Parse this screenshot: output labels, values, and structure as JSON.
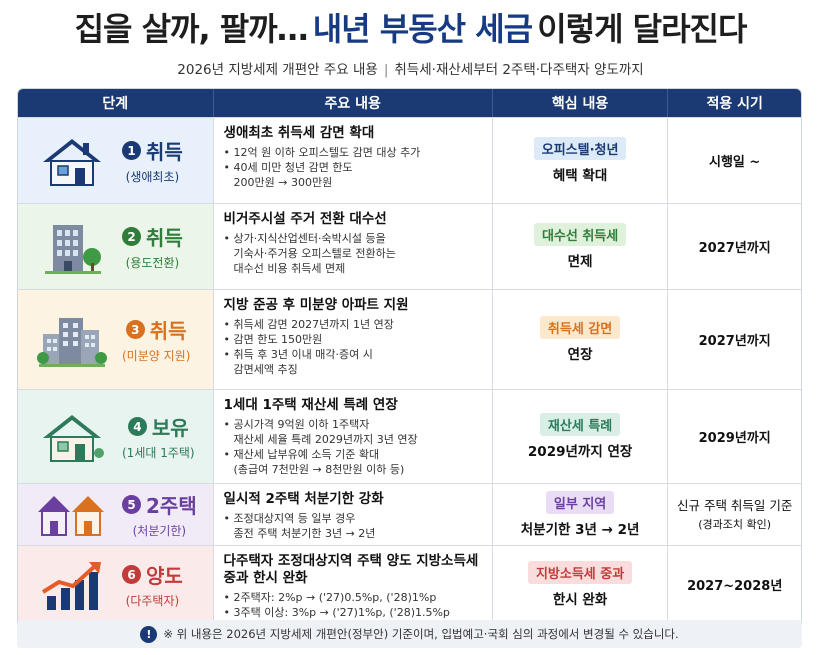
{
  "title": {
    "part1": "집을 살까, 팔까…",
    "part2": "내년 부동산 세금",
    "part3": "이렇게 달라진다"
  },
  "subtitle": {
    "left": "2026년 지방세제 개편안 주요 내용",
    "sep": "|",
    "right": "취득세·재산세부터 2주택·다주택자 양도까지"
  },
  "headers": {
    "stage": "단계",
    "content": "주요 내용",
    "core": "핵심 내용",
    "when": "적용 시기"
  },
  "rows": [
    {
      "num": "1",
      "name": "취득",
      "sub": "(생애최초)",
      "icon": "house-icon",
      "head": "생애최초 취득세 감면 확대",
      "bullets": [
        [
          "12억 원 이하 오피스텔도 감면 대상 추가"
        ],
        [
          "40세 미만 청년 감면 한도",
          "200만원 → 300만원"
        ]
      ],
      "badge": "오피스텔·청년",
      "desc": "혜택 확대",
      "when": "시행일 ~",
      "when_sub": "",
      "bg": "#e8f1fb",
      "accent": "#1b3a73",
      "badge_bg": "#dcebf7",
      "badge_fg": "#1b3a73"
    },
    {
      "num": "2",
      "name": "취득",
      "sub": "(용도전환)",
      "icon": "office-building-icon",
      "head": "비거주시설 주거 전환 대수선",
      "bullets": [
        [
          "상가·지식산업센터·숙박시설 등을",
          "기숙사·주거용 오피스텔로 전환하는",
          "대수선 비용 취득세 면제"
        ]
      ],
      "badge": "대수선 취득세",
      "desc": "면제",
      "when": "2027년까지",
      "when_sub": "",
      "bg": "#ebf5e9",
      "accent": "#2f7d3b",
      "badge_bg": "#dff0db",
      "badge_fg": "#2f7d3b"
    },
    {
      "num": "3",
      "name": "취득",
      "sub": "(미분양 지원)",
      "icon": "apartment-icon",
      "head": "지방 준공 후 미분양 아파트 지원",
      "bullets": [
        [
          "취득세 감면 2027년까지 1년 연장"
        ],
        [
          "감면 한도 150만원"
        ],
        [
          "취득 후 3년 이내 매각·증여 시",
          "감면세액 추징"
        ]
      ],
      "badge": "취득세 감면",
      "desc": "연장",
      "when": "2027년까지",
      "when_sub": "",
      "bg": "#fdf3e3",
      "accent": "#d9711f",
      "badge_bg": "#fce8cd",
      "badge_fg": "#d9711f"
    },
    {
      "num": "4",
      "name": "보유",
      "sub": "(1세대 1주택)",
      "icon": "green-house-icon",
      "head": "1세대 1주택 재산세 특례 연장",
      "bullets": [
        [
          "공시가격 9억원 이하 1주택자",
          "재산세 세율 특례 2029년까지 3년 연장"
        ],
        [
          "재산세 납부유예 소득 기준 확대",
          "(총급여 7천만원 → 8천만원 이하 등)"
        ]
      ],
      "badge": "재산세 특례",
      "desc": "2029년까지 연장",
      "when": "2029년까지",
      "when_sub": "",
      "bg": "#e8f4ef",
      "accent": "#2c7a5a",
      "badge_bg": "#d9efe5",
      "badge_fg": "#2c7a5a"
    },
    {
      "num": "5",
      "name": "2주택",
      "sub": "(처분기한)",
      "icon": "two-houses-icon",
      "head": "일시적 2주택 처분기한 강화",
      "bullets": [
        [
          "조정대상지역 등 일부 경우",
          "종전 주택 처분기한 3년 → 2년"
        ]
      ],
      "badge": "일부 지역",
      "desc": "처분기한 3년 → 2년",
      "when": "신규 주택 취득일 기준",
      "when_sub": "(경과조치 확인)",
      "bg": "#f1ebf7",
      "accent": "#6b3fa0",
      "badge_bg": "#e8ddf4",
      "badge_fg": "#6b3fa0"
    },
    {
      "num": "6",
      "name": "양도",
      "sub": "(다주택자)",
      "icon": "rising-chart-icon",
      "head": "다주택자 조정대상지역 주택 양도 지방소득세 중과 한시 완화",
      "bullets": [
        [
          "2주택자: 2%p → ('27)0.5%p, ('28)1%p"
        ],
        [
          "3주택 이상: 3%p → ('27)1%p, ('28)1.5%p"
        ]
      ],
      "badge": "지방소득세 중과",
      "desc": "한시 완화",
      "when": "2027~2028년",
      "when_sub": "",
      "bg": "#fbeaea",
      "accent": "#c23b3b",
      "badge_bg": "#f9dcdc",
      "badge_fg": "#c23b3b"
    }
  ],
  "note": {
    "icon": "info-icon",
    "mark": "!",
    "text": "※ 위 내용은 2026년 지방세제 개편안(정부안) 기준이며, 입법예고·국회 심의 과정에서 변경될 수 있습니다."
  }
}
